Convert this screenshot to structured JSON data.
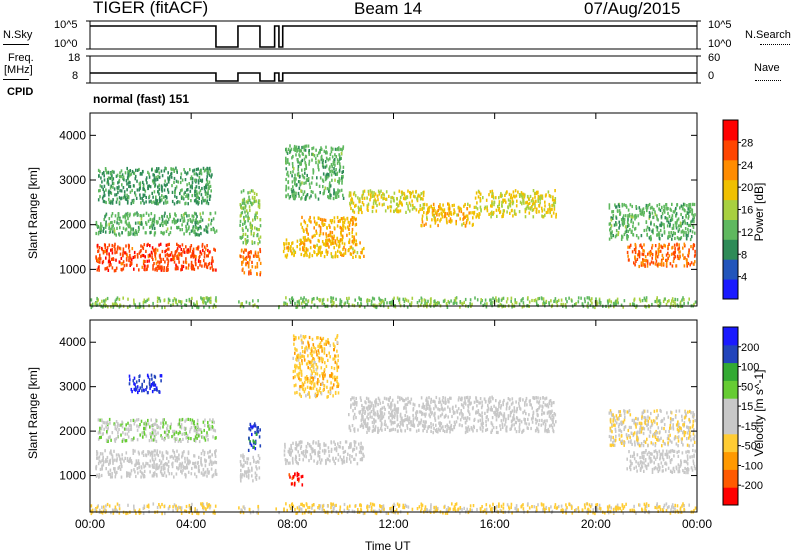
{
  "header": {
    "station": "TIGER (fitACF)",
    "beam": "Beam 14",
    "date": "07/Aug/2015"
  },
  "strip_labels": {
    "nsky": "N.Sky",
    "nsearch": "N.Search",
    "freq_line1": "Freq.",
    "freq_line2": "[MHz]",
    "nave": "Nave",
    "cpid": "CPID",
    "cpid_value": "normal (fast) 151"
  },
  "strip_ticks": {
    "nsky_top": "10^5",
    "nsky_bottom": "10^0",
    "nsearch_top": "10^5",
    "nsearch_bottom": "10^0",
    "freq_top": "18",
    "freq_bottom": "8",
    "nave_top": "60",
    "nave_bottom": "0"
  },
  "colors": {
    "power": [
      "#1a1aff",
      "#2255bb",
      "#2e8b57",
      "#5fb85f",
      "#a8d040",
      "#f0c000",
      "#ff8c00",
      "#ff4500",
      "#ff0000"
    ],
    "velocity": [
      "#ff0000",
      "#ff5a00",
      "#ff9900",
      "#ffcc33",
      "#c8c8c8",
      "#c8c8c8",
      "#66cc33",
      "#33aa33",
      "#2244bb",
      "#1a1aff"
    ]
  },
  "chart_data": [
    {
      "type": "heatmap",
      "name": "power",
      "xlabel": "",
      "ylabel": "Slant Range [km]",
      "colorbar_label": "Power [dB]",
      "colorbar_ticks": [
        "4",
        "8",
        "12",
        "16",
        "20",
        "24",
        "28"
      ],
      "colorbar_range": [
        0,
        32
      ],
      "x_range_hours": [
        0,
        24
      ],
      "ylim": [
        180,
        4500
      ],
      "y_ticks": [
        "1000",
        "2000",
        "3000",
        "4000"
      ],
      "y_tick_values": [
        1000,
        2000,
        3000,
        4000
      ],
      "data_gaps_hours": [
        [
          4.98,
          5.85
        ],
        [
          6.72,
          7.3
        ],
        [
          7.47,
          7.62
        ]
      ],
      "features": [
        {
          "t0": 0.2,
          "t1": 5.0,
          "r0": 1000,
          "r1": 1600,
          "value": 27
        },
        {
          "t0": 0.2,
          "t1": 5.0,
          "r0": 1800,
          "r1": 2300,
          "value": 12
        },
        {
          "t0": 0.3,
          "t1": 4.8,
          "r0": 2500,
          "r1": 3300,
          "value": 10
        },
        {
          "t0": 5.9,
          "t1": 7.3,
          "r0": 900,
          "r1": 1500,
          "value": 24
        },
        {
          "t0": 5.9,
          "t1": 7.3,
          "r0": 1600,
          "r1": 2800,
          "value": 14
        },
        {
          "t0": 7.6,
          "t1": 10.8,
          "r0": 1300,
          "r1": 1700,
          "value": 20
        },
        {
          "t0": 8.3,
          "t1": 10.5,
          "r0": 1600,
          "r1": 2200,
          "value": 21
        },
        {
          "t0": 7.7,
          "t1": 10.0,
          "r0": 2600,
          "r1": 3800,
          "value": 12
        },
        {
          "t0": 10.2,
          "t1": 13.2,
          "r0": 2300,
          "r1": 2800,
          "value": 18
        },
        {
          "t0": 13.0,
          "t1": 15.2,
          "r0": 2000,
          "r1": 2500,
          "value": 20
        },
        {
          "t0": 15.2,
          "t1": 18.4,
          "r0": 2200,
          "r1": 2800,
          "value": 18
        },
        {
          "t0": 21.2,
          "t1": 23.9,
          "r0": 1100,
          "r1": 1600,
          "value": 25
        },
        {
          "t0": 20.5,
          "t1": 23.9,
          "r0": 1700,
          "r1": 2500,
          "value": 12
        },
        {
          "t0": 0.0,
          "t1": 24.0,
          "r0": 180,
          "r1": 400,
          "value": 14
        }
      ]
    },
    {
      "type": "heatmap",
      "name": "velocity",
      "xlabel": "Time UT",
      "ylabel": "Slant Range [km]",
      "colorbar_label": "Velocity [m s^-1]",
      "colorbar_ticks": [
        "-200",
        "-100",
        "-50",
        "-15",
        "15",
        "50",
        "100",
        "200"
      ],
      "colorbar_range": [
        -250,
        250
      ],
      "x_range_hours": [
        0,
        24
      ],
      "x_ticks": [
        "00:00",
        "04:00",
        "08:00",
        "12:00",
        "16:00",
        "20:00",
        "00:00"
      ],
      "x_tick_values": [
        0,
        4,
        8,
        12,
        16,
        20,
        24
      ],
      "ylim": [
        180,
        4500
      ],
      "y_ticks": [
        "1000",
        "2000",
        "3000",
        "4000"
      ],
      "y_tick_values": [
        1000,
        2000,
        3000,
        4000
      ],
      "features": [
        {
          "t0": 0.2,
          "t1": 5.0,
          "r0": 1000,
          "r1": 1600,
          "value": 0
        },
        {
          "t0": 0.3,
          "t1": 5.0,
          "r0": 1800,
          "r1": 2300,
          "value": 40
        },
        {
          "t0": 1.5,
          "t1": 2.8,
          "r0": 2900,
          "r1": 3300,
          "value": 210
        },
        {
          "t0": 5.9,
          "t1": 7.3,
          "r0": 900,
          "r1": 1500,
          "value": 0
        },
        {
          "t0": 6.2,
          "t1": 7.0,
          "r0": 1600,
          "r1": 2200,
          "value": 180
        },
        {
          "t0": 7.6,
          "t1": 10.8,
          "r0": 1300,
          "r1": 1800,
          "value": 0
        },
        {
          "t0": 7.8,
          "t1": 8.4,
          "r0": 800,
          "r1": 1100,
          "value": -210
        },
        {
          "t0": 8.0,
          "t1": 9.8,
          "r0": 2800,
          "r1": 4200,
          "value": -80
        },
        {
          "t0": 10.2,
          "t1": 18.4,
          "r0": 2000,
          "r1": 2800,
          "value": 5
        },
        {
          "t0": 21.2,
          "t1": 23.9,
          "r0": 1100,
          "r1": 1600,
          "value": 0
        },
        {
          "t0": 20.5,
          "t1": 23.9,
          "r0": 1700,
          "r1": 2500,
          "value": -40
        },
        {
          "t0": 0.0,
          "t1": 24.0,
          "r0": 180,
          "r1": 400,
          "value": -60
        }
      ]
    }
  ]
}
